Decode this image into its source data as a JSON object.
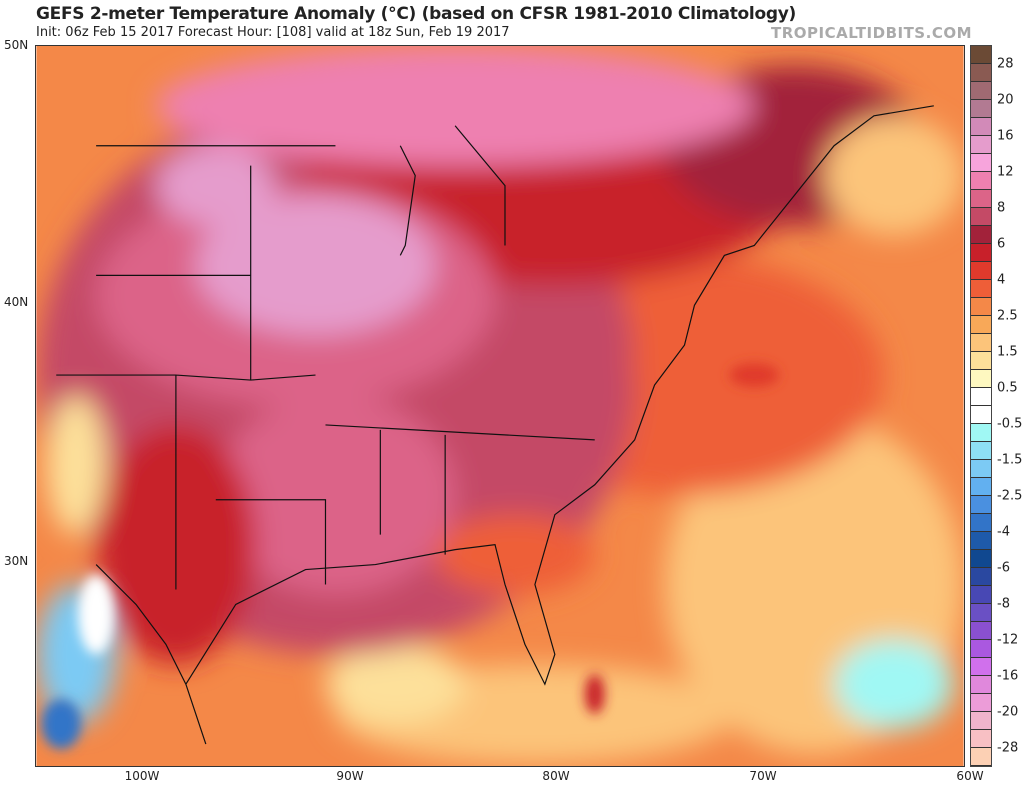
{
  "header": {
    "title": "GEFS 2-meter Temperature Anomaly (°C) (based on CFSR 1981-2010 Climatology)",
    "subtitle": "Init: 06z Feb 15 2017   Forecast Hour: [108]   valid at 18z Sun, Feb 19 2017",
    "brand": "TROPICALTIDBITS.COM"
  },
  "axes": {
    "lat_labels": [
      "50N",
      "40N",
      "30N"
    ],
    "lon_labels": [
      "100W",
      "90W",
      "80W",
      "70W",
      "60W"
    ]
  },
  "colorbar": {
    "labels": [
      "28",
      "20",
      "16",
      "12",
      "8",
      "6",
      "4",
      "2.5",
      "1.5",
      "0.5",
      "-0.5",
      "-1.5",
      "-2.5",
      "-4",
      "-6",
      "-8",
      "-12",
      "-16",
      "-20",
      "-28"
    ],
    "colors": [
      "#6b4a35",
      "#8a5a52",
      "#a06a72",
      "#b27a92",
      "#d28ab8",
      "#e59ccc",
      "#f7a4dc",
      "#ee80b0",
      "#dc6488",
      "#c44a66",
      "#a2223a",
      "#c8202a",
      "#e03a2c",
      "#ee5e38",
      "#f48848",
      "#f8a858",
      "#fcc47a",
      "#fde09a",
      "#fef8c0",
      "#ffffff",
      "#ffffff",
      "#a0f8f4",
      "#8ee0f4",
      "#7ccaf4",
      "#62b0f0",
      "#4a90e0",
      "#3274c8",
      "#1e5aaa",
      "#104890",
      "#2a48a0",
      "#4848b4",
      "#6a50c4",
      "#8a50d0",
      "#aa58e0",
      "#d070ec",
      "#e088dc",
      "#ec9cd8",
      "#f0b4cc",
      "#f8c0c4",
      "#fcd0b4"
    ]
  }
}
